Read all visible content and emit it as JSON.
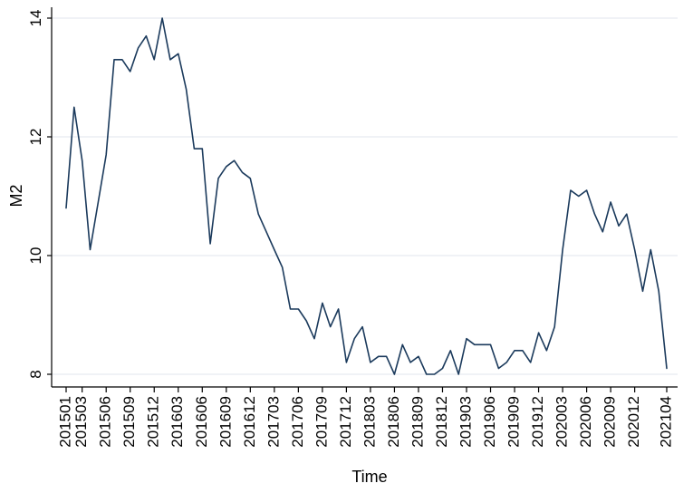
{
  "chart_data": {
    "type": "line",
    "xlabel": "Time",
    "ylabel": "M2",
    "ylim": [
      8,
      14
    ],
    "yticks": [
      8,
      10,
      12,
      14
    ],
    "xtick_labels": [
      "201501",
      "201503",
      "201506",
      "201509",
      "201512",
      "201603",
      "201606",
      "201609",
      "201612",
      "201703",
      "201706",
      "201709",
      "201712",
      "201803",
      "201806",
      "201809",
      "201812",
      "201903",
      "201906",
      "201909",
      "201912",
      "202003",
      "202006",
      "202009",
      "202012",
      "202104"
    ],
    "grid": "horizontal",
    "line_color": "#1b3a5c",
    "series": [
      {
        "x": [
          "201501",
          "201502",
          "201503",
          "201504",
          "201505",
          "201506",
          "201507",
          "201508",
          "201509",
          "201510",
          "201511",
          "201512",
          "201601",
          "201602",
          "201603",
          "201604",
          "201605",
          "201606",
          "201607",
          "201608",
          "201609",
          "201610",
          "201611",
          "201612",
          "201701",
          "201702",
          "201703",
          "201704",
          "201705",
          "201706",
          "201707",
          "201708",
          "201709",
          "201710",
          "201711",
          "201712",
          "201801",
          "201802",
          "201803",
          "201804",
          "201805",
          "201806",
          "201807",
          "201808",
          "201809",
          "201810",
          "201811",
          "201812",
          "201901",
          "201902",
          "201903",
          "201904",
          "201905",
          "201906",
          "201907",
          "201908",
          "201909",
          "201910",
          "201911",
          "201912",
          "202001",
          "202002",
          "202003",
          "202004",
          "202005",
          "202006",
          "202007",
          "202008",
          "202009",
          "202010",
          "202011",
          "202012",
          "202101",
          "202102",
          "202103",
          "202104"
        ],
        "values": [
          10.8,
          12.5,
          11.6,
          10.1,
          10.9,
          11.7,
          13.3,
          13.3,
          13.1,
          13.5,
          13.7,
          13.3,
          14.0,
          13.3,
          13.4,
          12.8,
          11.8,
          11.8,
          10.2,
          11.3,
          11.5,
          11.6,
          11.4,
          11.3,
          10.7,
          10.4,
          10.1,
          9.8,
          9.1,
          9.1,
          8.9,
          8.6,
          9.2,
          8.8,
          9.1,
          8.2,
          8.6,
          8.8,
          8.2,
          8.3,
          8.3,
          8.0,
          8.5,
          8.2,
          8.3,
          8.0,
          8.0,
          8.1,
          8.4,
          8.0,
          8.6,
          8.5,
          8.5,
          8.5,
          8.1,
          8.2,
          8.4,
          8.4,
          8.2,
          8.7,
          8.4,
          8.8,
          10.1,
          11.1,
          11.0,
          11.1,
          10.7,
          10.4,
          10.9,
          10.5,
          10.7,
          10.1,
          9.4,
          10.1,
          9.4,
          8.1
        ]
      }
    ]
  }
}
